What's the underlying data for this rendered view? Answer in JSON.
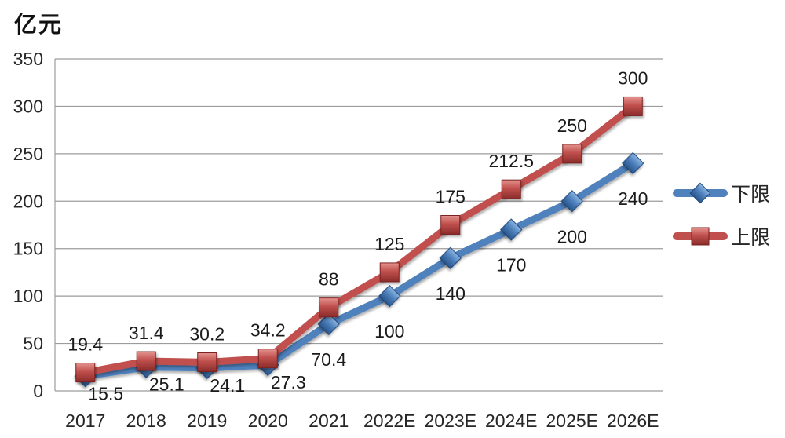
{
  "chart": {
    "unit_label": "亿元"
  },
  "chart_data": {
    "type": "line",
    "title": "",
    "ylabel": "亿元",
    "xlabel": "",
    "categories": [
      "2017",
      "2018",
      "2019",
      "2020",
      "2021",
      "2022E",
      "2023E",
      "2024E",
      "2025E",
      "2026E"
    ],
    "series": [
      {
        "name": "下限",
        "marker": "diamond",
        "color": "#4f81bd",
        "values": [
          15.5,
          25.1,
          24.1,
          27.3,
          70.4,
          100,
          140,
          170,
          200,
          240
        ]
      },
      {
        "name": "上限",
        "marker": "square",
        "color": "#c0504d",
        "values": [
          19.4,
          31.4,
          30.2,
          34.2,
          88,
          125,
          175,
          212.5,
          250,
          300
        ]
      }
    ],
    "ylim": [
      0,
      350
    ],
    "yticks": [
      0,
      50,
      100,
      150,
      200,
      250,
      300,
      350
    ],
    "grid": true,
    "data_labels": true,
    "legend_position": "right"
  }
}
